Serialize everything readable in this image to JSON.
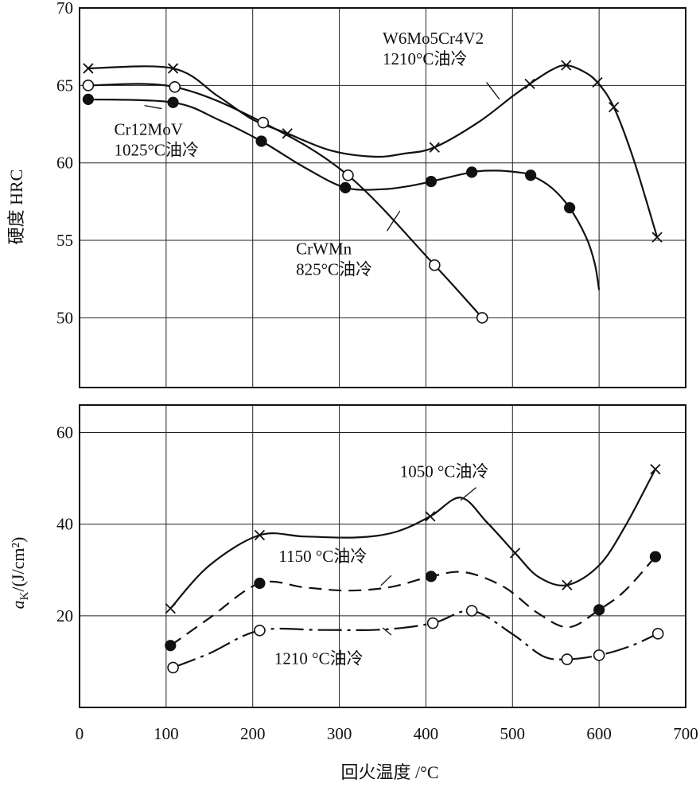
{
  "chart_data": [
    {
      "type": "line",
      "ylabel": "硬度 HRC",
      "xlim": [
        0,
        700
      ],
      "ylim": [
        45.5,
        70
      ],
      "yticks": [
        50,
        55,
        60,
        65,
        70
      ],
      "xgrid": [
        100,
        200,
        300,
        400,
        500,
        600
      ],
      "grid": true,
      "series": [
        {
          "name": "W6Mo5Cr4V2\n1210°C油冷",
          "marker": "cross",
          "line": "solid",
          "points": [
            [
              10,
              66.1
            ],
            [
              108,
              66.1
            ],
            [
              240,
              61.9
            ],
            [
              410,
              61.0
            ],
            [
              520,
              65.1
            ],
            [
              562,
              66.3
            ],
            [
              598,
              65.2
            ],
            [
              617,
              63.6
            ],
            [
              667,
              55.2
            ]
          ],
          "curve": [
            [
              10,
              66.1
            ],
            [
              108,
              66.1
            ],
            [
              160,
              64.3
            ],
            [
              200,
              62.8
            ],
            [
              240,
              61.9
            ],
            [
              290,
              60.8
            ],
            [
              340,
              60.4
            ],
            [
              375,
              60.6
            ],
            [
              410,
              61.0
            ],
            [
              460,
              62.6
            ],
            [
              500,
              64.3
            ],
            [
              520,
              65.1
            ],
            [
              545,
              66.0
            ],
            [
              562,
              66.3
            ],
            [
              582,
              65.9
            ],
            [
              598,
              65.2
            ],
            [
              617,
              63.6
            ],
            [
              640,
              60.2
            ],
            [
              667,
              55.2
            ]
          ]
        },
        {
          "name": "Cr12MoV\n1025°C油冷",
          "marker": "filled-circle",
          "line": "solid",
          "points": [
            [
              10,
              64.1
            ],
            [
              108,
              63.9
            ],
            [
              210,
              61.4
            ],
            [
              307,
              58.4
            ],
            [
              406,
              58.8
            ],
            [
              453,
              59.4
            ],
            [
              521,
              59.2
            ],
            [
              566,
              57.1
            ]
          ],
          "curve": [
            [
              10,
              64.1
            ],
            [
              108,
              63.9
            ],
            [
              160,
              62.8
            ],
            [
              210,
              61.4
            ],
            [
              260,
              59.7
            ],
            [
              307,
              58.4
            ],
            [
              350,
              58.3
            ],
            [
              380,
              58.5
            ],
            [
              406,
              58.8
            ],
            [
              453,
              59.4
            ],
            [
              480,
              59.5
            ],
            [
              505,
              59.4
            ],
            [
              521,
              59.2
            ],
            [
              545,
              58.4
            ],
            [
              566,
              57.1
            ],
            [
              585,
              55.2
            ],
            [
              595,
              53.5
            ],
            [
              600,
              51.8
            ]
          ]
        },
        {
          "name": "CrWMn\n825°C油冷",
          "marker": "open-circle",
          "line": "solid",
          "points": [
            [
              10,
              65.0
            ],
            [
              110,
              64.9
            ],
            [
              212,
              62.6
            ],
            [
              310,
              59.2
            ],
            [
              410,
              53.4
            ],
            [
              465,
              50.0
            ]
          ],
          "curve": [
            [
              10,
              65.0
            ],
            [
              110,
              64.9
            ],
            [
              212,
              62.6
            ],
            [
              310,
              59.2
            ],
            [
              410,
              53.4
            ],
            [
              465,
              50.0
            ]
          ]
        }
      ],
      "annotations": [
        {
          "lines": [
            "W6Mo5Cr4V2",
            "1210°C油冷"
          ],
          "at": [
            350,
            67.7
          ],
          "leader": [
            [
              485,
              64.1
            ],
            [
              470,
              65.2
            ]
          ]
        },
        {
          "lines": [
            "Cr12MoV",
            "1025°C油冷"
          ],
          "at": [
            40,
            61.8
          ],
          "leader": [
            [
              75,
              63.7
            ],
            [
              95,
              63.5
            ]
          ]
        },
        {
          "lines": [
            "CrWMn",
            "825°C油冷"
          ],
          "at": [
            250,
            54.1
          ],
          "leader": [
            [
              355,
              55.6
            ],
            [
              370,
              56.9
            ]
          ]
        }
      ]
    },
    {
      "type": "line",
      "xlabel": "回火温度 /°C",
      "ylabel": "a_K/(J/cm²)",
      "xlim": [
        0,
        700
      ],
      "ylim": [
        0,
        66
      ],
      "xticks": [
        0,
        100,
        200,
        300,
        400,
        500,
        600,
        700
      ],
      "yticks": [
        20,
        40,
        60
      ],
      "xgrid": [
        100,
        200,
        300,
        400,
        500,
        600
      ],
      "grid": true,
      "series": [
        {
          "name": "1050 °C油冷",
          "marker": "cross",
          "line": "solid",
          "points": [
            [
              105,
              21.6
            ],
            [
              208,
              37.6
            ],
            [
              405,
              41.7
            ],
            [
              503,
              33.7
            ],
            [
              563,
              26.7
            ],
            [
              665,
              52.0
            ]
          ],
          "curve": [
            [
              105,
              21.6
            ],
            [
              150,
              31.0
            ],
            [
              208,
              37.6
            ],
            [
              260,
              37.3
            ],
            [
              320,
              37.1
            ],
            [
              365,
              38.3
            ],
            [
              405,
              41.7
            ],
            [
              440,
              45.8
            ],
            [
              470,
              40.5
            ],
            [
              503,
              33.7
            ],
            [
              530,
              28.5
            ],
            [
              563,
              26.7
            ],
            [
              600,
              31.0
            ],
            [
              630,
              39.5
            ],
            [
              665,
              52.0
            ]
          ]
        },
        {
          "name": "1150 °C油冷",
          "marker": "filled-circle",
          "line": "dashed",
          "points": [
            [
              105,
              13.5
            ],
            [
              208,
              27.1
            ],
            [
              406,
              28.6
            ],
            [
              600,
              21.3
            ],
            [
              665,
              32.9
            ]
          ],
          "curve": [
            [
              105,
              13.5
            ],
            [
              150,
              19.5
            ],
            [
              208,
              27.1
            ],
            [
              260,
              26.2
            ],
            [
              310,
              25.5
            ],
            [
              360,
              26.3
            ],
            [
              406,
              28.6
            ],
            [
              445,
              29.5
            ],
            [
              490,
              26.3
            ],
            [
              530,
              20.5
            ],
            [
              565,
              17.5
            ],
            [
              600,
              21.3
            ],
            [
              630,
              25.5
            ],
            [
              665,
              32.9
            ]
          ]
        },
        {
          "name": "1210 °C油冷",
          "marker": "open-circle",
          "line": "dashdot",
          "points": [
            [
              108,
              8.7
            ],
            [
              208,
              16.8
            ],
            [
              408,
              18.4
            ],
            [
              453,
              21.1
            ],
            [
              563,
              10.5
            ],
            [
              600,
              11.4
            ],
            [
              668,
              16.1
            ]
          ],
          "curve": [
            [
              108,
              8.7
            ],
            [
              150,
              11.8
            ],
            [
              208,
              16.8
            ],
            [
              280,
              16.9
            ],
            [
              350,
              17.0
            ],
            [
              408,
              18.4
            ],
            [
              453,
              21.1
            ],
            [
              500,
              16.0
            ],
            [
              535,
              11.2
            ],
            [
              563,
              10.5
            ],
            [
              600,
              11.4
            ],
            [
              635,
              13.3
            ],
            [
              668,
              16.1
            ]
          ]
        }
      ],
      "annotations": [
        {
          "lines": [
            "1050 °C油冷"
          ],
          "at": [
            370,
            50.3
          ],
          "leader": [
            [
              458,
              48.0
            ],
            [
              440,
              45.2
            ]
          ]
        },
        {
          "lines": [
            "1150 °C油冷"
          ],
          "at": [
            230,
            31.8
          ],
          "leader": [
            [
              360,
              28.8
            ],
            [
              348,
              26.6
            ]
          ]
        },
        {
          "lines": [
            "1210 °C油冷"
          ],
          "at": [
            225,
            9.5
          ],
          "leader": [
            [
              360,
              15.8
            ],
            [
              350,
              17.4
            ]
          ]
        }
      ]
    }
  ]
}
